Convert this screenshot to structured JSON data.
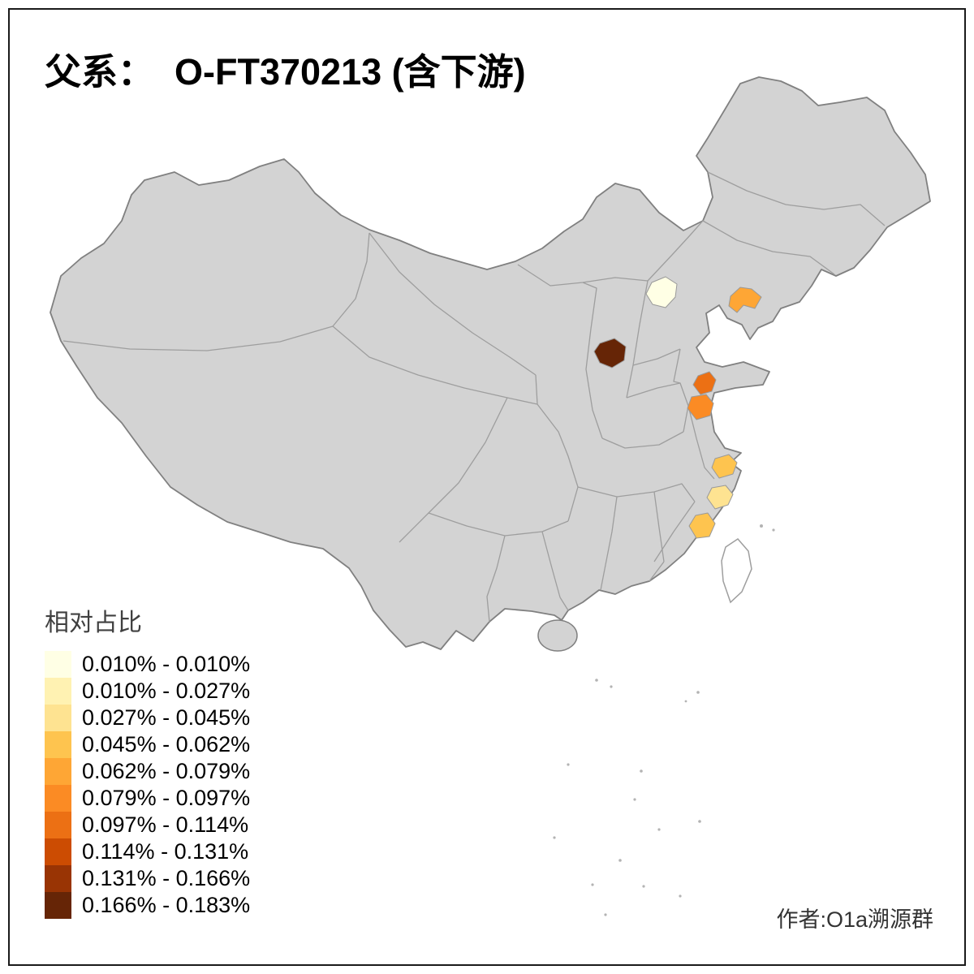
{
  "title": "父系：  O-FT370213 (含下游)",
  "legend": {
    "title": "相对占比",
    "items": [
      {
        "label": "0.010% - 0.010%",
        "color": "#FFFFE5"
      },
      {
        "label": "0.010% - 0.027%",
        "color": "#FFF2B2"
      },
      {
        "label": "0.027% - 0.045%",
        "color": "#FEE391"
      },
      {
        "label": "0.045% - 0.062%",
        "color": "#FEC44F"
      },
      {
        "label": "0.062% - 0.079%",
        "color": "#FEA635"
      },
      {
        "label": "0.079% - 0.097%",
        "color": "#FB8B24"
      },
      {
        "label": "0.097% - 0.114%",
        "color": "#EC7014"
      },
      {
        "label": "0.114% - 0.131%",
        "color": "#CC4C02"
      },
      {
        "label": "0.131% - 0.166%",
        "color": "#993404"
      },
      {
        "label": "0.166% - 0.183%",
        "color": "#662506"
      }
    ]
  },
  "author": "作者:O1a溯源群",
  "map": {
    "land_color": "#D3D3D3",
    "outline_color": "#808080",
    "province_border_color": "#9E9E9E",
    "background": "#FFFFFF",
    "highlights": [
      {
        "name": "beijing-area",
        "color": "#FFFFE5"
      },
      {
        "name": "liaodong-area",
        "color": "#FEA635"
      },
      {
        "name": "shanxi-south-area",
        "color": "#662506"
      },
      {
        "name": "jiangsu-north-area",
        "color": "#EC7014"
      },
      {
        "name": "jiangsu-central-area",
        "color": "#FB8B24"
      },
      {
        "name": "zhejiang-north-area",
        "color": "#FEC44F"
      },
      {
        "name": "zhejiang-south-area",
        "color": "#FEE391"
      },
      {
        "name": "fujian-coast-area",
        "color": "#FEC44F"
      }
    ]
  }
}
